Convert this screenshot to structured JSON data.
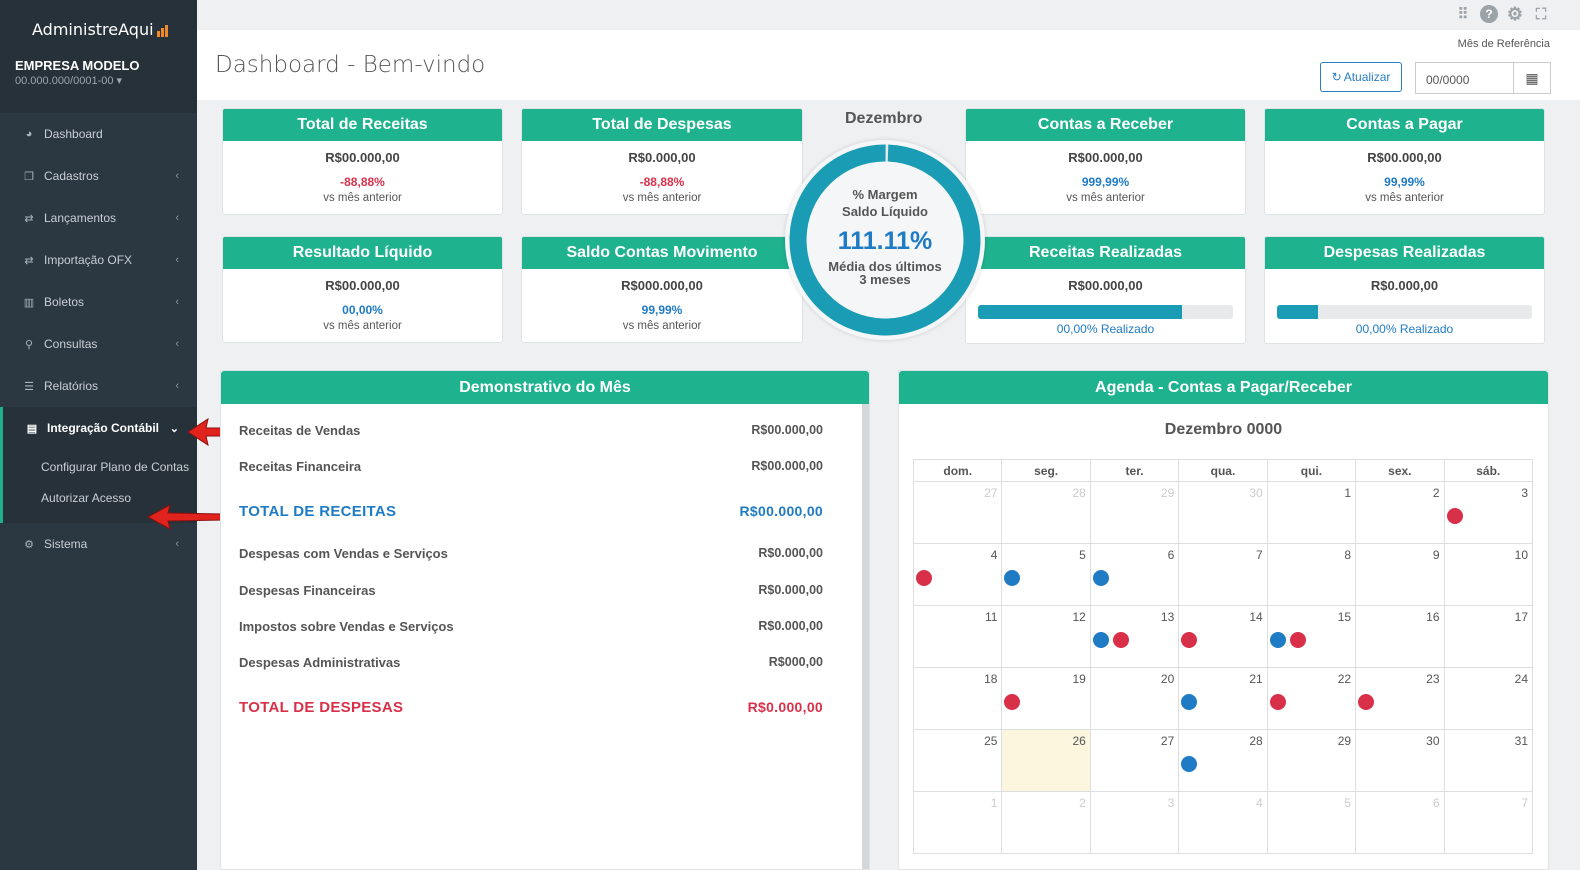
{
  "app": {
    "brand": "AdministreAqui",
    "company": "EMPRESA MODELO",
    "cnpj": "00.000.000/0001-00 ▾"
  },
  "sidebar": {
    "items": [
      {
        "label": "Dashboard",
        "icon": "dashboard-icon"
      },
      {
        "label": "Cadastros",
        "icon": "copy-icon"
      },
      {
        "label": "Lançamentos",
        "icon": "exchange-icon"
      },
      {
        "label": "Importação OFX",
        "icon": "exchange-icon"
      },
      {
        "label": "Boletos",
        "icon": "barcode-icon"
      },
      {
        "label": "Consultas",
        "icon": "search-icon"
      },
      {
        "label": "Relatórios",
        "icon": "list-icon"
      },
      {
        "label": "Integração Contábil",
        "icon": "table-icon"
      },
      {
        "label": "Sistema",
        "icon": "cogs-icon"
      }
    ],
    "sub": [
      "Configurar Plano de Contas",
      "Autorizar Acesso"
    ]
  },
  "header": {
    "title": "Dashboard - Bem-vindo",
    "ref_label": "Mês de Referência",
    "update_label": "Atualizar",
    "date_value": "00/0000"
  },
  "cards": [
    {
      "title": "Total de Receitas",
      "value": "R$00.000,00",
      "pct": "-88,88%",
      "sub": "vs mês anterior"
    },
    {
      "title": "Total de Despesas",
      "value": "R$0.000,00",
      "pct": "-88,88%",
      "sub": "vs mês anterior"
    },
    {
      "title": "Contas a Receber",
      "value": "R$00.000,00",
      "pct": "999,99%",
      "sub": "vs mês anterior"
    },
    {
      "title": "Contas a Pagar",
      "value": "R$00.000,00",
      "pct": "99,99%",
      "sub": "vs mês anterior"
    },
    {
      "title": "Resultado Líquido",
      "value": "R$00.000,00",
      "pct": "00,00%",
      "sub": "vs mês anterior"
    },
    {
      "title": "Saldo Contas Movimento",
      "value": "R$000.000,00",
      "pct": "99,99%",
      "sub": "vs mês anterior"
    },
    {
      "title": "Receitas Realizadas",
      "value": "R$00.000,00",
      "progress": 0.8,
      "progress_label": "00,00% Realizado"
    },
    {
      "title": "Despesas Realizadas",
      "value": "R$0.000,00",
      "progress": 0.16,
      "progress_label": "00,00% Realizado"
    }
  ],
  "gauge": {
    "month": "Dezembro",
    "label1": "% Margem",
    "label2": "Saldo Líquido",
    "value": "111.11%",
    "foot1": "Média dos últimos",
    "foot2": "3 meses",
    "fraction": 0.995
  },
  "demonstrativo": {
    "title": "Demonstrativo do Mês",
    "rows": [
      {
        "label": "Receitas de Vendas",
        "value": "R$00.000,00"
      },
      {
        "label": "Receitas Financeira",
        "value": "R$00.000,00"
      },
      {
        "label": "TOTAL DE RECEITAS",
        "value": "R$00.000,00"
      },
      {
        "label": "Despesas com Vendas e Serviços",
        "value": "R$0.000,00"
      },
      {
        "label": "Despesas Financeiras",
        "value": "R$0.000,00"
      },
      {
        "label": "Impostos sobre Vendas e Serviços",
        "value": "R$0.000,00"
      },
      {
        "label": "Despesas Administrativas",
        "value": "R$000,00"
      },
      {
        "label": "TOTAL DE DESPESAS",
        "value": "R$0.000,00"
      }
    ]
  },
  "agenda": {
    "title": "Agenda - Contas a Pagar/Receber",
    "month": "Dezembro 0000",
    "weekdays": [
      "dom.",
      "seg.",
      "ter.",
      "qua.",
      "qui.",
      "sex.",
      "sáb."
    ],
    "weeks": [
      [
        {
          "d": "27",
          "o": 1
        },
        {
          "d": "28",
          "o": 1
        },
        {
          "d": "29",
          "o": 1
        },
        {
          "d": "30",
          "o": 1
        },
        {
          "d": "1"
        },
        {
          "d": "2"
        },
        {
          "d": "3",
          "dots": "r"
        }
      ],
      [
        {
          "d": "4",
          "dots": "r"
        },
        {
          "d": "5",
          "dots": "b"
        },
        {
          "d": "6",
          "dots": "b"
        },
        {
          "d": "7"
        },
        {
          "d": "8"
        },
        {
          "d": "9"
        },
        {
          "d": "10"
        }
      ],
      [
        {
          "d": "11"
        },
        {
          "d": "12"
        },
        {
          "d": "13",
          "dots": "br"
        },
        {
          "d": "14",
          "dots": "r"
        },
        {
          "d": "15",
          "dots": "br"
        },
        {
          "d": "16"
        },
        {
          "d": "17"
        }
      ],
      [
        {
          "d": "18"
        },
        {
          "d": "19",
          "dots": "r"
        },
        {
          "d": "20"
        },
        {
          "d": "21",
          "dots": "b"
        },
        {
          "d": "22",
          "dots": "r"
        },
        {
          "d": "23",
          "dots": "r"
        },
        {
          "d": "24"
        }
      ],
      [
        {
          "d": "25"
        },
        {
          "d": "26",
          "today": 1
        },
        {
          "d": "27"
        },
        {
          "d": "28",
          "dots": "b"
        },
        {
          "d": "29"
        },
        {
          "d": "30"
        },
        {
          "d": "31"
        }
      ],
      [
        {
          "d": "1",
          "o": 1
        },
        {
          "d": "2",
          "o": 1
        },
        {
          "d": "3",
          "o": 1
        },
        {
          "d": "4",
          "o": 1
        },
        {
          "d": "5",
          "o": 1
        },
        {
          "d": "6",
          "o": 1
        },
        {
          "d": "7",
          "o": 1
        }
      ]
    ]
  },
  "colors": {
    "accent": "#1eb28f",
    "sidebar": "#2b3741",
    "negative": "#d9304a",
    "positive": "#1f7bc4"
  }
}
